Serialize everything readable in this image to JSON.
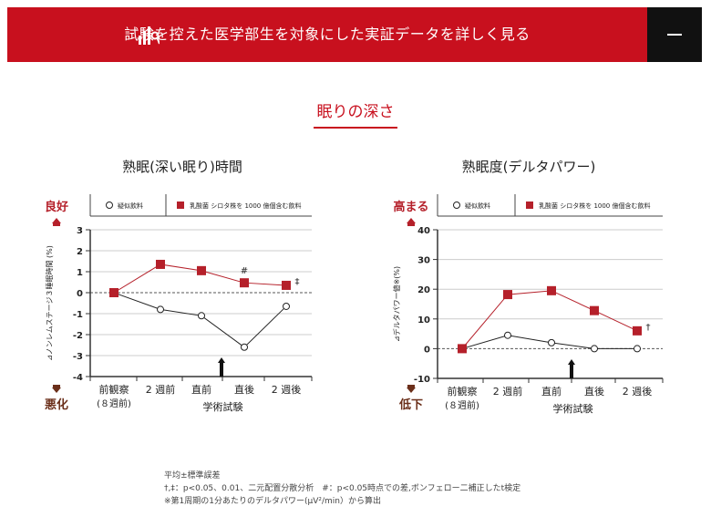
{
  "header": {
    "title": "試験を控えた医学部生を対象にした実証データを詳しく見る",
    "icon": "chart-search-icon",
    "toggle_icon": "minus-icon",
    "bg": "#c8101e"
  },
  "section": {
    "title": "眠りの深さ"
  },
  "legend": {
    "placebo": "疑似飲料",
    "probiotic": "乳酸菌 シロタ株を 1000 億個含む飲料"
  },
  "chart_data": [
    {
      "type": "line",
      "title": "熟眠(深い眠り)時間",
      "ylabel": "⊿ノンレムステージ３睡眠時間 (%)",
      "xlabel": "学術試験",
      "good_label": "良好",
      "bad_label": "悪化",
      "categories": [
        "前観察",
        "2 週前",
        "直前",
        "直後",
        "2 週後"
      ],
      "category_sub": [
        "(８週前)",
        "",
        "",
        "",
        ""
      ],
      "ylim": [
        -4,
        3
      ],
      "yticks": [
        3,
        2,
        1,
        0,
        -1,
        -2,
        -3,
        -4
      ],
      "grid": true,
      "series": [
        {
          "name": "疑似飲料",
          "marker": "circle",
          "color": "#222222",
          "values": [
            0,
            -0.8,
            -1.1,
            -2.6,
            -0.65
          ],
          "annotations": [
            "",
            "",
            "",
            "",
            ""
          ]
        },
        {
          "name": "乳酸菌 シロタ株を 1000 億個含む飲料",
          "marker": "square",
          "color": "#b5202a",
          "values": [
            0,
            1.35,
            1.05,
            0.47,
            0.35
          ],
          "annotations": [
            "",
            "",
            "",
            "#",
            "‡"
          ]
        }
      ],
      "exam_marker_between": [
        "直前",
        "直後"
      ]
    },
    {
      "type": "line",
      "title": "熟眠度(デルタパワー)",
      "ylabel": "⊿デルタパワー値※(%)",
      "xlabel": "学術試験",
      "good_label": "高まる",
      "bad_label": "低下",
      "categories": [
        "前観察",
        "2 週前",
        "直前",
        "直後",
        "2 週後"
      ],
      "category_sub": [
        "(８週前)",
        "",
        "",
        "",
        ""
      ],
      "ylim": [
        -10,
        40
      ],
      "yticks": [
        40,
        30,
        20,
        10,
        0,
        -10
      ],
      "grid": true,
      "series": [
        {
          "name": "疑似飲料",
          "marker": "circle",
          "color": "#222222",
          "values": [
            0,
            4.5,
            2,
            0,
            0
          ],
          "annotations": [
            "",
            "",
            "",
            "",
            ""
          ]
        },
        {
          "name": "乳酸菌 シロタ株を 1000 億個含む飲料",
          "marker": "square",
          "color": "#b5202a",
          "values": [
            0,
            18.2,
            19.5,
            12.8,
            6
          ],
          "annotations": [
            "",
            "",
            "",
            "",
            "†"
          ]
        }
      ],
      "exam_marker_between": [
        "直前",
        "直後"
      ]
    }
  ],
  "notes": [
    "平均±標準誤差",
    "†,‡：p<0.05、0.01、二元配置分散分析　#：p<0.05時点での差,ボンフェロー二補正したt検定",
    "※第1周期の1分あたりのデルタパワー(μV²/min）から算出"
  ]
}
